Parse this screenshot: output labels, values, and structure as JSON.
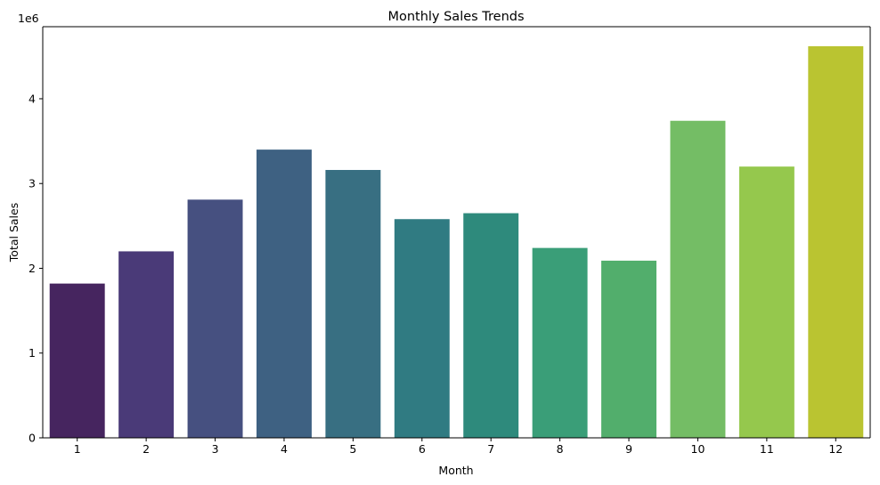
{
  "chart_data": {
    "type": "bar",
    "title": "Monthly Sales Trends",
    "xlabel": "Month",
    "ylabel": "Total Sales",
    "offset_text": "1e6",
    "categories": [
      "1",
      "2",
      "3",
      "4",
      "5",
      "6",
      "7",
      "8",
      "9",
      "10",
      "11",
      "12"
    ],
    "values": [
      1.82,
      2.2,
      2.81,
      3.4,
      3.16,
      2.58,
      2.65,
      2.24,
      2.09,
      3.74,
      3.2,
      4.62
    ],
    "value_multiplier": 1000000,
    "ylim": [
      0,
      4.85
    ],
    "yticks": [
      0,
      1,
      2,
      3,
      4
    ],
    "grid": false,
    "legend": "none",
    "colors": [
      "#46255f",
      "#4a3a78",
      "#465080",
      "#3e6182",
      "#386f82",
      "#307b82",
      "#2e8a7c",
      "#3a9e78",
      "#52ae6c",
      "#74bd65",
      "#95c84d",
      "#bac431"
    ]
  }
}
